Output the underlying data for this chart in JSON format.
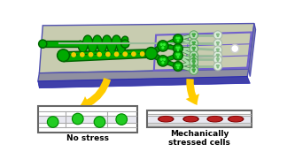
{
  "bg_color": "#ffffff",
  "chip_top_color": "#c8ccb0",
  "chip_side_color": "#9090a0",
  "chip_bottom_color": "#7080a0",
  "chip_border": "#5050b0",
  "green_dark": "#006600",
  "green_mid": "#00aa00",
  "green_bright": "#33ee33",
  "green_pale": "#aaddaa",
  "yellow": "#ffdd00",
  "yellow_dot": "#eecc00",
  "arrow_fill": "#ffcc00",
  "arrow_edge": "#cc8800",
  "purple_grid": "#7060cc",
  "red_dark": "#880000",
  "red_bright": "#cc2222",
  "no_stress_label": "No stress",
  "stressed_label": "Mechanically\nstressed cells",
  "label_fontsize": 6.5,
  "label_fontweight": "bold"
}
